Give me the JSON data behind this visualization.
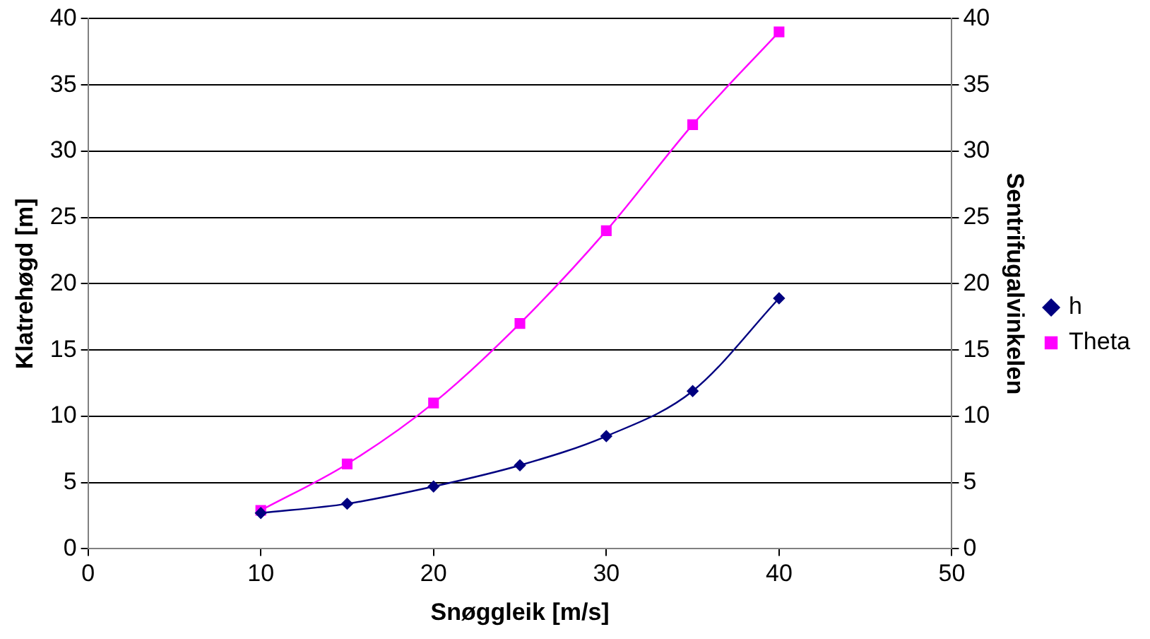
{
  "chart_data": {
    "type": "line",
    "xlabel": "Snøggleik [m/s]",
    "ylabel": "Klatrehøgd [m]",
    "y2label": "Sentrifugalvinkelen",
    "x": [
      10,
      15,
      20,
      25,
      30,
      35,
      40
    ],
    "series": [
      {
        "name": "h",
        "color": "#000080",
        "marker": "diamond",
        "values": [
          2.7,
          3.4,
          4.7,
          6.3,
          8.5,
          11.9,
          18.9
        ]
      },
      {
        "name": "Theta",
        "color": "#ff00ff",
        "marker": "square",
        "axis": "y2",
        "values": [
          2.9,
          6.4,
          11,
          17,
          24,
          32,
          39
        ]
      }
    ],
    "xlim": [
      0,
      50
    ],
    "xticks": [
      0,
      10,
      20,
      30,
      40,
      50
    ],
    "ylim": [
      0,
      40
    ],
    "yticks": [
      0,
      5,
      10,
      15,
      20,
      25,
      30,
      35,
      40
    ],
    "y2lim": [
      0,
      40
    ],
    "y2ticks": [
      0,
      5,
      10,
      15,
      20,
      25,
      30,
      35,
      40
    ],
    "grid": "y",
    "legend": "right",
    "line_style": "solid"
  }
}
